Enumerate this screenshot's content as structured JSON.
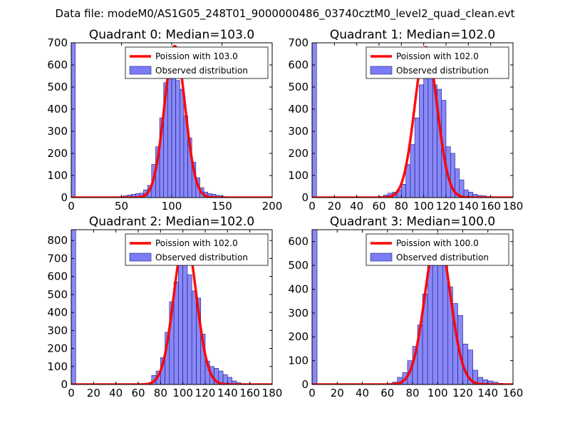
{
  "figure": {
    "suptitle": "Data file: modeM0/AS1G05_248T01_9000000486_03740cztM0_level2_quad_clean.evt"
  },
  "colors": {
    "hist_fill": "#7b7bf5",
    "hist_edge": "#1a1a80",
    "poisson_line": "#ff0000",
    "axes": "#000000",
    "background": "#ffffff"
  },
  "chart_data": [
    {
      "type": "bar",
      "title": "Quadrant 0: Median=103.0",
      "xlim": [
        0,
        200
      ],
      "ylim": [
        0,
        700
      ],
      "xticks": [
        0,
        50,
        100,
        150,
        200
      ],
      "yticks": [
        0,
        100,
        200,
        300,
        400,
        500,
        600,
        700
      ],
      "legend_position": "top-right",
      "legend": [
        "Poission with 103.0",
        "Observed distribution"
      ],
      "median": 103.0,
      "line_peak": 685,
      "line_sigma": 10.3,
      "bins": {
        "left": [
          0,
          48,
          52,
          56,
          60,
          64,
          68,
          72,
          76,
          80,
          84,
          88,
          92,
          96,
          100,
          104,
          108,
          112,
          116,
          120,
          124,
          128,
          132,
          136,
          140,
          144,
          148,
          152
        ],
        "width": 4,
        "counts": [
          700,
          5,
          8,
          12,
          15,
          18,
          20,
          35,
          55,
          150,
          230,
          360,
          520,
          650,
          610,
          530,
          490,
          370,
          270,
          160,
          90,
          45,
          25,
          18,
          15,
          10,
          7,
          4
        ]
      }
    },
    {
      "type": "bar",
      "title": "Quadrant 1: Median=102.0",
      "xlim": [
        0,
        180
      ],
      "ylim": [
        0,
        700
      ],
      "xticks": [
        0,
        20,
        40,
        60,
        80,
        100,
        120,
        140,
        160,
        180
      ],
      "yticks": [
        0,
        100,
        200,
        300,
        400,
        500,
        600,
        700
      ],
      "legend_position": "top-right",
      "legend": [
        "Poission with 102.0",
        "Observed distribution"
      ],
      "median": 102.0,
      "line_peak": 680,
      "line_sigma": 10.1,
      "bins": {
        "left": [
          0,
          60,
          64,
          68,
          72,
          76,
          80,
          84,
          88,
          92,
          96,
          100,
          104,
          108,
          112,
          116,
          120,
          124,
          128,
          132,
          136,
          140,
          144,
          148,
          152,
          156
        ],
        "width": 4,
        "counts": [
          700,
          5,
          12,
          20,
          25,
          35,
          60,
          150,
          240,
          360,
          510,
          560,
          600,
          510,
          490,
          440,
          230,
          200,
          130,
          80,
          35,
          25,
          15,
          10,
          8,
          5
        ]
      }
    },
    {
      "type": "bar",
      "title": "Quadrant 2: Median=102.0",
      "xlim": [
        0,
        180
      ],
      "ylim": [
        0,
        860
      ],
      "xticks": [
        0,
        20,
        40,
        60,
        80,
        100,
        120,
        140,
        160,
        180
      ],
      "yticks": [
        0,
        100,
        200,
        300,
        400,
        500,
        600,
        700,
        800
      ],
      "legend_position": "top-right",
      "legend": [
        "Poission with 102.0",
        "Observed distribution"
      ],
      "median": 102.0,
      "line_peak": 820,
      "line_sigma": 10.1,
      "bins": {
        "left": [
          0,
          72,
          76,
          80,
          84,
          88,
          92,
          96,
          100,
          104,
          108,
          112,
          116,
          120,
          124,
          128,
          132,
          136,
          140,
          144,
          148,
          152
        ],
        "width": 4,
        "counts": [
          860,
          50,
          75,
          150,
          290,
          460,
          570,
          780,
          710,
          610,
          520,
          480,
          280,
          130,
          100,
          90,
          75,
          55,
          40,
          20,
          10,
          5
        ]
      }
    },
    {
      "type": "bar",
      "title": "Quadrant 3: Median=100.0",
      "xlim": [
        0,
        160
      ],
      "ylim": [
        0,
        650
      ],
      "xticks": [
        0,
        20,
        40,
        60,
        80,
        100,
        120,
        140,
        160
      ],
      "yticks": [
        0,
        100,
        200,
        300,
        400,
        500,
        600
      ],
      "legend_position": "top-right",
      "legend": [
        "Poission with 100.0",
        "Observed distribution"
      ],
      "median": 100.0,
      "line_peak": 630,
      "line_sigma": 10.0,
      "bins": {
        "left": [
          0,
          64,
          68,
          72,
          76,
          80,
          84,
          88,
          92,
          96,
          100,
          104,
          108,
          112,
          116,
          120,
          124,
          128,
          132,
          136,
          140,
          144,
          148
        ],
        "width": 4,
        "counts": [
          650,
          10,
          30,
          50,
          100,
          160,
          250,
          380,
          510,
          560,
          600,
          620,
          410,
          340,
          290,
          170,
          145,
          60,
          30,
          20,
          15,
          10,
          5
        ]
      }
    }
  ]
}
